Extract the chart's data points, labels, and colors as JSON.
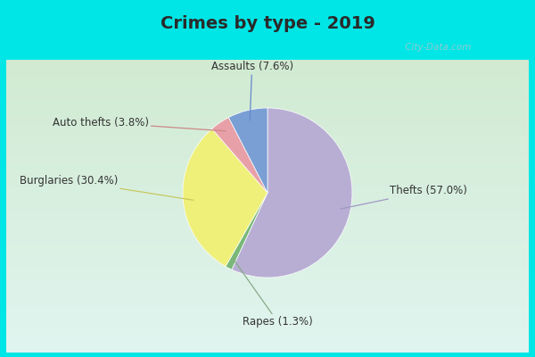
{
  "title": "Crimes by type - 2019",
  "slices": [
    {
      "label": "Thefts (57.0%)",
      "value": 57.0,
      "color": "#b8aed4"
    },
    {
      "label": "Rapes (1.3%)",
      "value": 1.3,
      "color": "#7ab87a"
    },
    {
      "label": "Burglaries (30.4%)",
      "value": 30.4,
      "color": "#eef07a"
    },
    {
      "label": "Auto thefts (3.8%)",
      "value": 3.8,
      "color": "#e8a0a8"
    },
    {
      "label": "Assaults (7.6%)",
      "value": 7.6,
      "color": "#7a9fd4"
    }
  ],
  "outer_bg": "#00e5e5",
  "inner_bg_color": "#d8ede8",
  "title_fontsize": 14,
  "label_fontsize": 8.5,
  "startangle": 90,
  "watermark": " City-Data.com",
  "title_color": "#2a2a2a",
  "label_color": "#333333"
}
